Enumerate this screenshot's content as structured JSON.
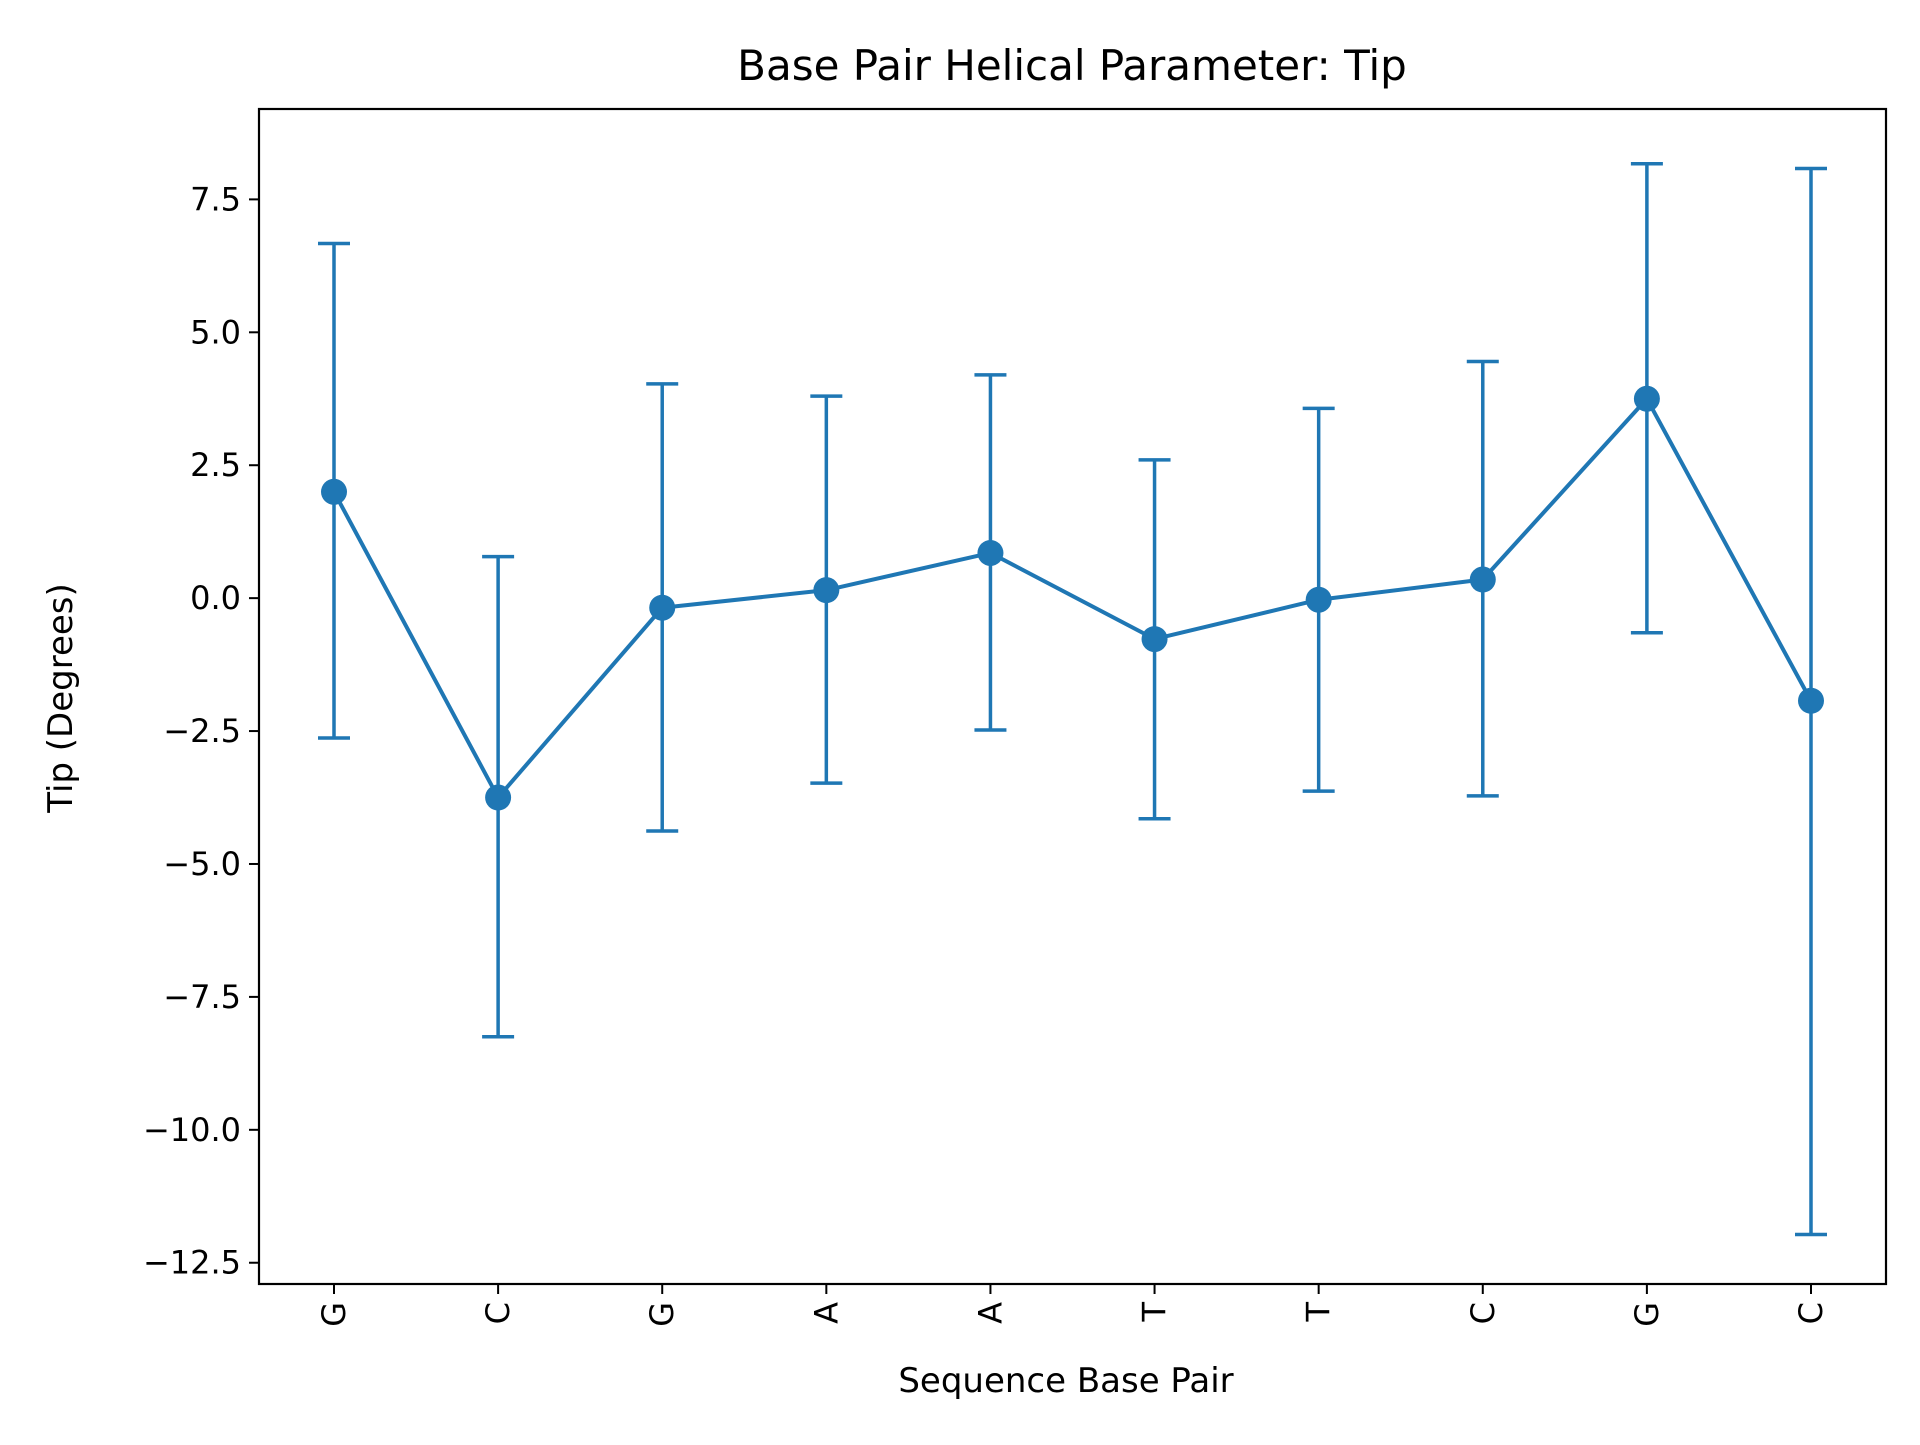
{
  "chart_data": {
    "type": "line",
    "title": "Base Pair  Helical Parameter: Tip",
    "xlabel": "Sequence Base Pair",
    "ylabel": "Tip (Degrees)",
    "categories": [
      "G",
      "C",
      "G",
      "A",
      "A",
      "T",
      "T",
      "C",
      "G",
      "C"
    ],
    "series": [
      {
        "values": [
          2.0,
          -3.75,
          -0.18,
          0.15,
          0.85,
          -0.77,
          -0.03,
          0.35,
          3.75,
          -1.93
        ],
        "error_lower": [
          -2.63,
          -8.25,
          -4.38,
          -3.48,
          -2.48,
          -4.15,
          -3.63,
          -3.72,
          -0.65,
          -11.97
        ],
        "error_upper": [
          6.67,
          0.78,
          4.03,
          3.8,
          4.2,
          2.6,
          3.57,
          4.45,
          8.17,
          8.08
        ],
        "marker": "circle",
        "color": "#1f77b4"
      }
    ],
    "ylim": [
      -12.9,
      9.2
    ],
    "yticks": [
      7.5,
      5.0,
      2.5,
      0.0,
      -2.5,
      -5.0,
      -7.5,
      -10.0,
      -12.5
    ],
    "ytick_labels": [
      "7.5",
      "5.0",
      "2.5",
      "0.0",
      "−2.5",
      "−5.0",
      "−7.5",
      "−10.0",
      "−12.5"
    ],
    "xtick_rotation": "vertical",
    "grid": false,
    "legend": "none"
  }
}
